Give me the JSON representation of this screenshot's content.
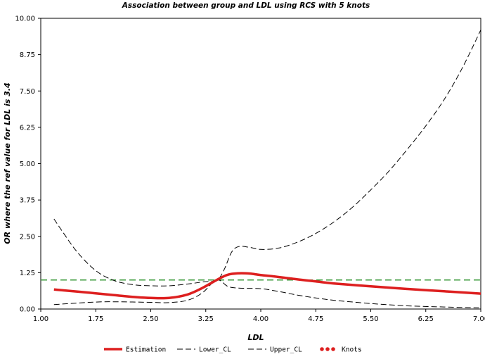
{
  "chart_data": {
    "type": "line",
    "title": "Association between group and LDL    using RCS with 5 knots",
    "xlabel": "LDL",
    "ylabel": "OR where the ref value for LDL    is 3.4",
    "xlim": [
      1.0,
      7.0
    ],
    "ylim": [
      0.0,
      10.0
    ],
    "x_ticks": [
      "1.00",
      "1.75",
      "2.50",
      "3.25",
      "4.00",
      "4.75",
      "5.50",
      "6.25",
      "7.00"
    ],
    "y_ticks": [
      "0.00",
      "1.25",
      "2.50",
      "3.75",
      "5.00",
      "6.25",
      "7.50",
      "8.75",
      "10.00"
    ],
    "reference_line": {
      "y": 1.0,
      "color": "#3a9a3a",
      "style": "dashed"
    },
    "legend_position": "bottom",
    "series": [
      {
        "name": "Estimation",
        "color": "#dd1f1f",
        "style": "solid",
        "x": [
          1.18,
          1.5,
          1.75,
          2.0,
          2.25,
          2.5,
          2.75,
          3.0,
          3.2,
          3.4,
          3.55,
          3.7,
          3.85,
          4.0,
          4.25,
          4.5,
          4.75,
          5.0,
          5.5,
          6.0,
          6.5,
          7.0
        ],
        "y": [
          0.67,
          0.6,
          0.54,
          0.48,
          0.42,
          0.38,
          0.38,
          0.5,
          0.72,
          1.0,
          1.18,
          1.23,
          1.22,
          1.17,
          1.1,
          1.02,
          0.95,
          0.88,
          0.78,
          0.69,
          0.61,
          0.53
        ]
      },
      {
        "name": "Lower_CL",
        "color": "#000000",
        "style": "dashed",
        "x": [
          1.18,
          1.4,
          1.75,
          2.0,
          2.5,
          2.75,
          3.0,
          3.2,
          3.4,
          3.55,
          3.7,
          4.0,
          4.25,
          4.5,
          4.75,
          5.0,
          5.5,
          6.0,
          6.5,
          7.0
        ],
        "y": [
          0.15,
          0.19,
          0.24,
          0.25,
          0.23,
          0.22,
          0.3,
          0.55,
          1.0,
          0.78,
          0.72,
          0.7,
          0.6,
          0.48,
          0.38,
          0.3,
          0.19,
          0.11,
          0.07,
          0.04
        ]
      },
      {
        "name": "Upper_CL",
        "color": "#000000",
        "style": "dashed",
        "x": [
          1.18,
          1.3,
          1.5,
          1.75,
          2.0,
          2.25,
          2.5,
          2.75,
          3.0,
          3.2,
          3.4,
          3.5,
          3.6,
          3.7,
          3.85,
          4.0,
          4.25,
          4.5,
          4.75,
          5.0,
          5.25,
          5.5,
          5.75,
          6.0,
          6.25,
          6.5,
          6.75,
          7.0
        ],
        "y": [
          3.1,
          2.65,
          1.95,
          1.32,
          0.98,
          0.84,
          0.8,
          0.8,
          0.86,
          0.93,
          1.0,
          1.35,
          1.95,
          2.15,
          2.12,
          2.05,
          2.1,
          2.3,
          2.6,
          3.0,
          3.5,
          4.1,
          4.75,
          5.5,
          6.3,
          7.2,
          8.3,
          9.6
        ]
      }
    ],
    "legend": [
      "Estimation",
      "Lower_CL",
      "Upper_CL",
      "Knots"
    ]
  }
}
